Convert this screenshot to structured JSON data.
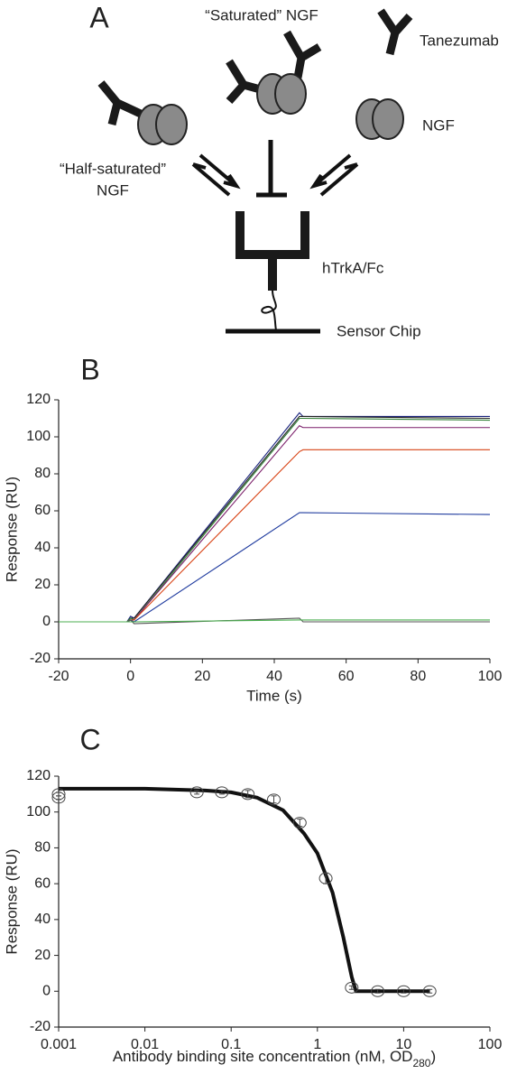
{
  "diagram": {
    "panel_label": "A",
    "saturated_label": "“Saturated” NGF",
    "antibody_label": "Tanezumab",
    "ngf_label": "NGF",
    "half_saturated_label": [
      "“Half-saturated”",
      "NGF"
    ],
    "receptor_label": "hTrkA/Fc",
    "chip_label": "Sensor Chip"
  },
  "chart_data": [
    {
      "type": "line",
      "title": "B",
      "xlabel": "Time (s)",
      "ylabel": "Response (RU)",
      "x": [
        -20,
        -1,
        0,
        1,
        47,
        48,
        100
      ],
      "series": [
        {
          "color": "#1a237e",
          "values": [
            0,
            0,
            3,
            2,
            113,
            111,
            111
          ]
        },
        {
          "color": "#222222",
          "values": [
            0,
            0,
            2,
            2,
            111,
            111,
            110
          ]
        },
        {
          "color": "#2e7d32",
          "values": [
            0,
            0,
            2,
            1,
            110,
            110,
            109
          ]
        },
        {
          "color": "#7b1f6a",
          "values": [
            0,
            0,
            1,
            1,
            106,
            105,
            105
          ]
        },
        {
          "color": "#d84315",
          "values": [
            0,
            0,
            1,
            1,
            92,
            93,
            93
          ]
        },
        {
          "color": "#1e3a9e",
          "values": [
            0,
            0,
            1,
            0,
            59,
            59,
            58
          ]
        },
        {
          "color": "#555555",
          "values": [
            0,
            0,
            1,
            -1,
            2,
            0,
            0
          ]
        },
        {
          "color": "#4caf50",
          "values": [
            0,
            0,
            0,
            0,
            1,
            1,
            1
          ]
        }
      ],
      "xlim": [
        -20,
        100
      ],
      "xticks": [
        -20,
        0,
        20,
        40,
        60,
        80,
        100
      ],
      "ylim": [
        -20,
        120
      ],
      "yticks": [
        -20,
        0,
        20,
        40,
        60,
        80,
        100,
        120
      ]
    },
    {
      "type": "scatter",
      "title": "C",
      "ylabel": "Response (RU)",
      "xlabel": [
        "Antibody binding site concentration (nM, OD",
        "280",
        ")"
      ],
      "xscale": "log",
      "series": [
        {
          "color": "#444444",
          "x": [
            0.001,
            0.001,
            0.04,
            0.078,
            0.156,
            0.3125,
            0.625,
            1.25,
            2.5,
            5,
            10,
            20
          ],
          "values": [
            108,
            110,
            111,
            111,
            110,
            107,
            94,
            63,
            2,
            0,
            0,
            0
          ],
          "errors": [
            1,
            1,
            1,
            1,
            2,
            2,
            2,
            3,
            1,
            1,
            1,
            1
          ]
        }
      ],
      "fit": {
        "color": "#111111",
        "x": [
          0.001,
          0.01,
          0.05,
          0.1,
          0.2,
          0.4,
          0.7,
          1,
          1.5,
          2,
          2.5,
          2.8,
          5,
          20
        ],
        "values": [
          113,
          113,
          112,
          111,
          108,
          101,
          88,
          77,
          55,
          30,
          8,
          0,
          0,
          0
        ]
      },
      "xlim": [
        0.001,
        100
      ],
      "xticks": [
        0.001,
        0.01,
        0.1,
        1,
        10,
        100
      ],
      "ylim": [
        -20,
        120
      ],
      "yticks": [
        -20,
        0,
        20,
        40,
        60,
        80,
        100,
        120
      ]
    }
  ]
}
